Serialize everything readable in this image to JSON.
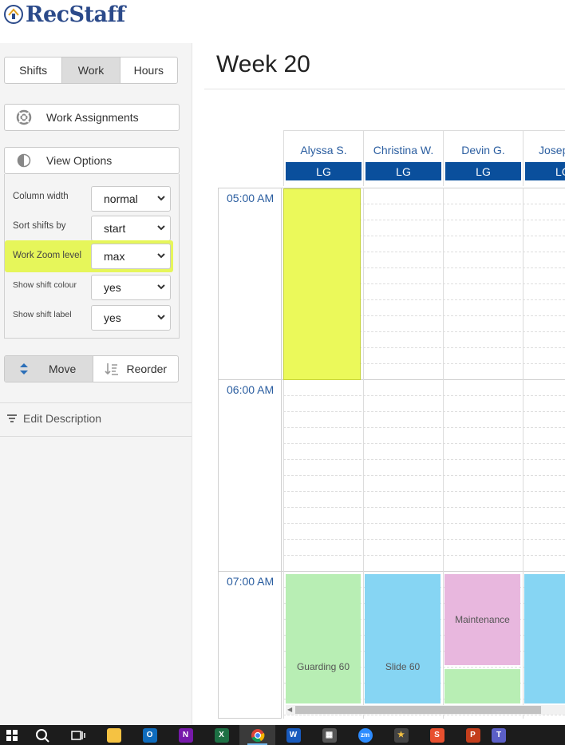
{
  "app": {
    "logo_text": "RecStaff"
  },
  "sidebar": {
    "tabs": [
      {
        "label": "Shifts",
        "active": false
      },
      {
        "label": "Work",
        "active": true
      },
      {
        "label": "Hours",
        "active": false
      }
    ],
    "work_assignments_label": "Work Assignments",
    "view_options_label": "View Options",
    "options": [
      {
        "label": "Column width",
        "value": "normal"
      },
      {
        "label": "Sort shifts by",
        "value": "start"
      },
      {
        "label": "Work Zoom level",
        "value": "max",
        "highlighted": true
      },
      {
        "label": "Show shift colour",
        "value": "yes"
      },
      {
        "label": "Show shift label",
        "value": "yes"
      }
    ],
    "move_label": "Move",
    "reorder_label": "Reorder",
    "edit_description_label": "Edit Description"
  },
  "main": {
    "title": "Week 20",
    "columns": [
      {
        "name": "Alyssa S.",
        "badge": "LG"
      },
      {
        "name": "Christina W.",
        "badge": "LG"
      },
      {
        "name": "Devin G.",
        "badge": "LG"
      },
      {
        "name": "Josep",
        "badge": "LG"
      }
    ],
    "times": [
      "05:00 AM",
      "06:00 AM",
      "07:00 AM"
    ],
    "shifts": [
      {
        "label": "Guarding 60",
        "color": "#b8eeb4"
      },
      {
        "label": "Slide 60",
        "color": "#86d5f3"
      },
      {
        "label": "Maintenance",
        "color": "#e8b7de"
      },
      {
        "label": "",
        "color": "#b8eeb4"
      },
      {
        "label": "",
        "color": "#86d5f3"
      }
    ],
    "selected_block_color": "#ebf95a"
  },
  "taskbar": {
    "items": [
      "windows-start",
      "search",
      "task-view",
      "file-explorer",
      "outlook",
      "onenote",
      "excel",
      "chrome",
      "word",
      "calculator",
      "zoom",
      "media-player",
      "app-s",
      "powerpoint",
      "teams"
    ]
  },
  "colors": {
    "accent": "#0a4f9c",
    "link": "#2b5ea0",
    "highlight": "#e6f65a"
  }
}
